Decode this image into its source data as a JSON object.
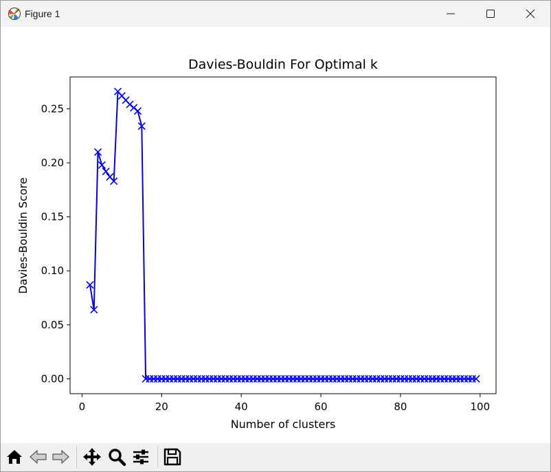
{
  "window": {
    "title": "Figure 1",
    "app_icon": "matplotlib-icon",
    "controls": [
      "minimize-icon",
      "maximize-icon",
      "close-icon"
    ]
  },
  "toolbar": {
    "buttons": [
      "home-icon",
      "back-arrow-icon",
      "forward-arrow-icon",
      "pan-move-icon",
      "zoom-magnifier-icon",
      "configure-subplots-icon",
      "save-floppy-icon"
    ]
  },
  "chart_data": {
    "type": "line",
    "title": "Davies-Bouldin For Optimal k",
    "xlabel": "Number of clusters",
    "ylabel": "Davies-Bouldin Score",
    "xlim": [
      -3,
      104
    ],
    "ylim": [
      -0.0137,
      0.2795
    ],
    "xticks": [
      0,
      20,
      40,
      60,
      80,
      100
    ],
    "xtick_labels": [
      "0",
      "20",
      "40",
      "60",
      "80",
      "100"
    ],
    "yticks": [
      0.0,
      0.05,
      0.1,
      0.15,
      0.2,
      0.25
    ],
    "ytick_labels": [
      "0.00",
      "0.05",
      "0.10",
      "0.15",
      "0.20",
      "0.25"
    ],
    "grid": false,
    "marker": "x",
    "color": "#0000ff",
    "x_start": 2,
    "x_end": 99,
    "values_head": [
      0.087,
      0.064,
      0.21,
      0.198,
      0.192,
      0.187,
      0.183,
      0.266,
      0.262,
      0.258,
      0.254,
      0.251,
      0.248,
      0.234
    ],
    "value_rest": 0.0
  }
}
